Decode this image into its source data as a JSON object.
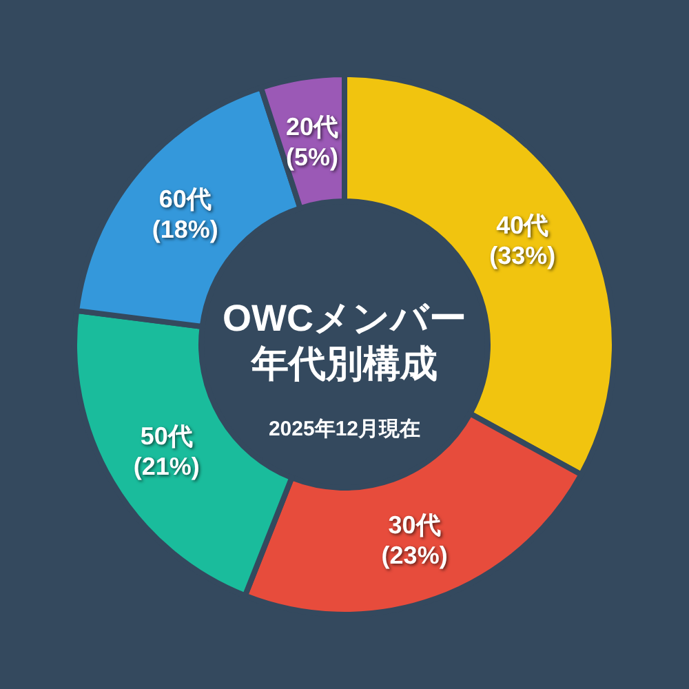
{
  "chart_data": {
    "type": "donut",
    "title": "OWCメンバー年代別構成",
    "subtitle": "2025年12月現在",
    "categories": [
      "40代",
      "30代",
      "50代",
      "60代",
      "20代"
    ],
    "values": [
      33,
      23,
      21,
      18,
      5
    ],
    "colors": [
      "#f1c40f",
      "#e74c3c",
      "#1abc9c",
      "#3498db",
      "#9b59b6"
    ],
    "value_labels": [
      "(33%)",
      "(23%)",
      "(21%)",
      "(18%)",
      "(5%)"
    ],
    "legend": false
  }
}
